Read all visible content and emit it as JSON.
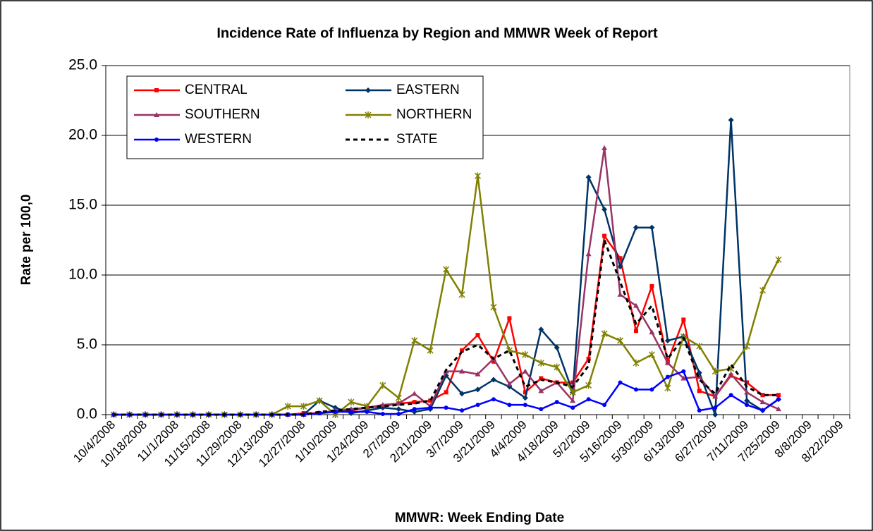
{
  "chart_data": {
    "type": "line",
    "title": "Incidence Rate of Influenza by Region and MMWR Week of Report",
    "xlabel": "MMWR: Week Ending Date",
    "ylabel": "Rate per 100,0",
    "categories": [
      "10/4/2008",
      null,
      "10/18/2008",
      null,
      "11/1/2008",
      null,
      "11/15/2008",
      null,
      "11/29/2008",
      null,
      "12/13/2008",
      null,
      "12/27/2008",
      null,
      "1/10/2009",
      null,
      "1/24/2009",
      null,
      "2/7/2009",
      null,
      "2/21/2009",
      null,
      "3/7/2009",
      null,
      "3/21/2009",
      null,
      "4/4/2009",
      null,
      "4/18/2009",
      null,
      "5/2/2009",
      null,
      "5/16/2009",
      null,
      "5/30/2009",
      null,
      "6/13/2009",
      null,
      "6/27/2009",
      null,
      "7/11/2009",
      null,
      "7/25/2009",
      null,
      "8/8/2009",
      null,
      "8/22/2009"
    ],
    "series": [
      {
        "name": "CENTRAL",
        "color": "#ff0000",
        "marker": "square",
        "linestyle": "solid",
        "values": [
          0,
          0,
          0,
          0,
          0,
          0,
          0,
          0,
          0,
          0,
          0,
          0,
          0.1,
          0.1,
          0.2,
          0.3,
          0.5,
          0.6,
          0.8,
          0.9,
          1.0,
          1.6,
          4.6,
          5.7,
          3.8,
          6.9,
          1.6,
          2.6,
          2.3,
          2.3,
          4.0,
          12.8,
          11.2,
          6.0,
          9.2,
          3.8,
          6.8,
          1.7,
          1.3,
          2.8,
          2.3,
          1.4,
          1.4,
          null,
          null,
          null,
          null
        ]
      },
      {
        "name": "EASTERN",
        "color": "#003366",
        "marker": "diamond",
        "linestyle": "solid",
        "values": [
          0,
          0,
          0,
          0,
          0,
          0,
          0,
          0,
          0,
          0,
          0,
          0,
          0,
          1.0,
          0.5,
          0.1,
          0.3,
          0.5,
          0.4,
          0.2,
          0.4,
          2.8,
          1.5,
          1.8,
          2.5,
          2.0,
          1.2,
          6.1,
          4.8,
          1.6,
          17.0,
          14.7,
          10.6,
          13.4,
          13.4,
          5.3,
          5.6,
          3.0,
          0,
          21.1,
          1.0,
          0.3,
          1.1,
          null,
          null,
          null,
          null
        ]
      },
      {
        "name": "SOUTHERN",
        "color": "#993366",
        "marker": "triangle",
        "linestyle": "solid",
        "values": [
          0,
          0,
          0,
          0,
          0,
          0,
          0,
          0,
          0,
          0,
          0,
          0,
          0,
          0.1,
          0.3,
          0.4,
          0.5,
          0.7,
          0.8,
          1.5,
          0.6,
          3.1,
          3.1,
          2.9,
          4.0,
          2.2,
          3.1,
          1.7,
          2.3,
          1.0,
          11.5,
          19.1,
          8.6,
          7.8,
          5.9,
          3.7,
          2.6,
          2.7,
          1.3,
          2.9,
          1.6,
          0.9,
          0.4,
          null,
          null,
          null,
          null
        ]
      },
      {
        "name": "NORTHERN",
        "color": "#808000",
        "marker": "star",
        "linestyle": "solid",
        "values": [
          0,
          0,
          0,
          0,
          0,
          0,
          0,
          0,
          0,
          0,
          0,
          0.6,
          0.6,
          1.0,
          0.0,
          0.9,
          0.6,
          2.1,
          1.2,
          5.3,
          4.6,
          10.4,
          8.6,
          17.1,
          7.7,
          4.6,
          4.3,
          3.7,
          3.4,
          1.6,
          2.1,
          5.8,
          5.3,
          3.7,
          4.3,
          1.9,
          5.6,
          4.9,
          3.1,
          3.3,
          4.9,
          8.9,
          11.1,
          null,
          null,
          null,
          null
        ]
      },
      {
        "name": "WESTERN",
        "color": "#0000ff",
        "marker": "circle",
        "linestyle": "solid",
        "values": [
          0,
          0,
          0,
          0,
          0,
          0,
          0,
          0,
          0,
          0,
          0,
          0,
          0,
          0.1,
          0.2,
          0.2,
          0.2,
          0.05,
          0.05,
          0.4,
          0.5,
          0.5,
          0.3,
          0.7,
          1.1,
          0.7,
          0.7,
          0.4,
          0.9,
          0.5,
          1.1,
          0.7,
          2.3,
          1.8,
          1.8,
          2.7,
          3.1,
          0.3,
          0.5,
          1.4,
          0.7,
          0.3,
          1.1,
          null,
          null,
          null,
          null
        ]
      },
      {
        "name": "STATE",
        "color": "#000000",
        "marker": "none",
        "linestyle": "dashed",
        "values": [
          0,
          0,
          0,
          0,
          0,
          0,
          0,
          0,
          0,
          0,
          0,
          0,
          0,
          0.2,
          0.3,
          0.4,
          0.5,
          0.6,
          0.7,
          0.8,
          1.0,
          3.2,
          4.5,
          5.0,
          4.0,
          4.6,
          2.0,
          2.5,
          2.3,
          2.0,
          3.5,
          12.5,
          9.5,
          6.5,
          7.8,
          4.0,
          5.5,
          2.5,
          1.5,
          3.6,
          2.0,
          1.4,
          1.4,
          null,
          null,
          null,
          null
        ]
      }
    ],
    "ylim": [
      0,
      25
    ],
    "yticks": [
      {
        "value": 0,
        "label": "0.0"
      },
      {
        "value": 5,
        "label": "5.0"
      },
      {
        "value": 10,
        "label": "10.0"
      },
      {
        "value": 15,
        "label": "15.0"
      },
      {
        "value": 20,
        "label": "20.0"
      },
      {
        "value": 25,
        "label": "25.0"
      }
    ],
    "grid": true,
    "legend": "upper left"
  }
}
